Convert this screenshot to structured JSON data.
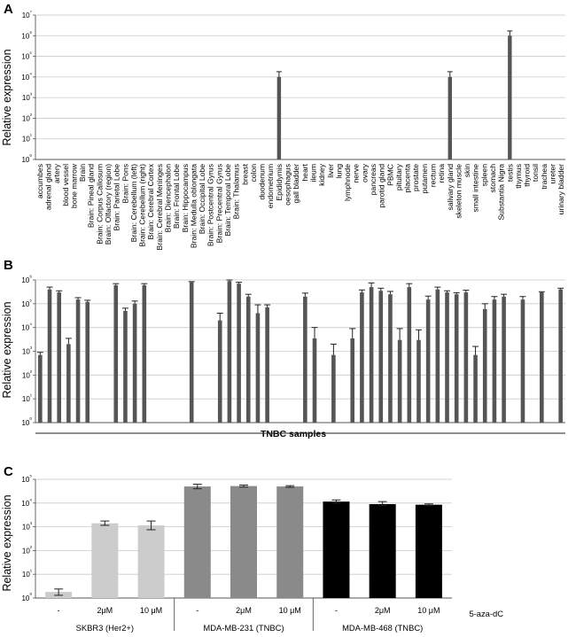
{
  "chart_data": [
    {
      "panel": "A",
      "type": "bar",
      "ylabel": "Relative expression",
      "yscale": "log",
      "ylim": [
        1,
        10000000
      ],
      "yticks": [
        "10⁰",
        "10¹",
        "10²",
        "10³",
        "10⁴",
        "10⁵",
        "10⁶",
        "10⁷"
      ],
      "grid": true,
      "color": "#555555",
      "categories": [
        "accumbes",
        "adrenal gland",
        "artery",
        "blood vessel",
        "bone marrow",
        "Brain",
        "Brain: Pineal gland",
        "Brain: Corpus Callosum",
        "Brain: Olfactory (region)",
        "Brain: Parietal Lobe",
        "Brain: Pons",
        "Brain: Cerebellum (left)",
        "Brain: Cerebellum (right)",
        "Brain: Cerebral Cortex",
        "Brain: Cerebral Meninges",
        "Brain: Diencephalon",
        "Brain: Frontal Lobe",
        "Brain: Hippocampus",
        "Brain: Medulla oblongata",
        "Brain: Occipital Lobe",
        "Brain: Postcentral Gyrus",
        "Brain: Precentral Gyrus",
        "Brain: Temporal Lobe",
        "Brain: Thalamus",
        "breast",
        "colon",
        "duodenum",
        "endometrium",
        "Epididymis",
        "oesophagus",
        "gall bladder",
        "heart",
        "ileum",
        "kidney",
        "liver",
        "lung",
        "lymphnode",
        "nerve",
        "ovary",
        "pancreas",
        "parotid gland",
        "PBMC",
        "pituitary",
        "placenta",
        "prostate",
        "putamen",
        "rectum",
        "retina",
        "salivary gland",
        "skeleton muscle",
        "skin",
        "small intestine",
        "spleen",
        "stomach",
        "Substantia Nigra",
        "testis",
        "thymus",
        "thyroid",
        "tonsil",
        "trachea",
        "ureter",
        "urinary bladder"
      ],
      "values": [
        1,
        1,
        1,
        1,
        1,
        1,
        1,
        1,
        1,
        1,
        1,
        1,
        1,
        1,
        1,
        1,
        1,
        1,
        1,
        1,
        1,
        1,
        1,
        1,
        1,
        1,
        1,
        1,
        10000,
        1,
        1,
        1,
        1,
        1,
        1,
        1,
        1,
        1,
        1,
        1,
        1,
        1,
        1,
        1,
        1,
        1,
        1,
        1,
        10000,
        1,
        1,
        1,
        1,
        1,
        1,
        1000000,
        1,
        1,
        1,
        1,
        1,
        1
      ],
      "errors_upper": [
        1,
        1,
        1,
        1,
        1,
        1,
        1,
        1,
        1,
        1,
        1,
        1,
        1,
        1,
        1,
        1,
        1,
        1,
        1,
        1,
        1,
        1,
        1,
        1,
        1,
        1,
        1,
        1,
        18000,
        1,
        1,
        1,
        1,
        1,
        1,
        1,
        1,
        1,
        1,
        1,
        1,
        1,
        1,
        1,
        1,
        1,
        1,
        1,
        18000,
        1,
        1,
        1,
        1,
        1,
        1,
        1700000,
        1,
        1,
        1,
        1,
        1,
        1
      ]
    },
    {
      "panel": "B",
      "type": "bar",
      "ylabel": "Relative expression",
      "xlabel": "TNBC samples",
      "yscale": "log",
      "ylim": [
        1,
        1000000
      ],
      "yticks": [
        "10⁰",
        "10¹",
        "10²",
        "10³",
        "10⁴",
        "10⁵",
        "10⁶"
      ],
      "grid": true,
      "color": "#555555",
      "values": [
        700,
        400000,
        300000,
        2000,
        150000,
        120000,
        1,
        1,
        600000,
        50000,
        100000,
        600000,
        1,
        1,
        1,
        1,
        800000,
        1,
        1,
        20000,
        900000,
        700000,
        200000,
        40000,
        70000,
        1,
        1,
        1,
        200000,
        3500,
        1,
        700,
        1,
        3500,
        300000,
        500000,
        350000,
        250000,
        3000,
        500000,
        3000,
        150000,
        400000,
        300000,
        250000,
        300000,
        700,
        60000,
        150000,
        200000,
        1,
        150000,
        1,
        300000,
        1,
        400000
      ],
      "errors_upper": [
        900,
        500000,
        350000,
        3500,
        180000,
        140000,
        1,
        1,
        700000,
        65000,
        130000,
        700000,
        1,
        1,
        1,
        1,
        850000,
        1,
        1,
        40000,
        1000000,
        800000,
        250000,
        90000,
        90000,
        1,
        1,
        1,
        280000,
        10000,
        1,
        2000,
        1,
        9000,
        380000,
        750000,
        450000,
        330000,
        9000,
        700000,
        8000,
        210000,
        500000,
        350000,
        290000,
        370000,
        1600,
        100000,
        200000,
        250000,
        1,
        200000,
        1,
        320000,
        1,
        450000
      ]
    },
    {
      "panel": "C",
      "type": "bar",
      "ylabel": "Relative expression",
      "yscale": "log",
      "ylim": [
        1,
        100000
      ],
      "yticks": [
        "10⁰",
        "10¹",
        "10²",
        "10³",
        "10⁴",
        "10⁵"
      ],
      "grid": true,
      "treatment_label": "5-aza-dC",
      "groups": [
        {
          "name": "SKBR3   (Her2+)",
          "color": "#cccccc",
          "categories": [
            "-",
            "2μM",
            "10 μM"
          ],
          "values": [
            1.8,
            1400,
            1150
          ],
          "errors": [
            [
              1.3,
              2.4
            ],
            [
              1150,
              1750
            ],
            [
              750,
              1750
            ]
          ]
        },
        {
          "name": "MDA-MB-231  (TNBC)",
          "color": "#8a8a8a",
          "categories": [
            "-",
            "2μM",
            "10 μM"
          ],
          "values": [
            50000,
            52000,
            50000
          ],
          "errors": [
            [
              40000,
              62000
            ],
            [
              47000,
              57000
            ],
            [
              46000,
              54000
            ]
          ]
        },
        {
          "name": "MDA-MB-468  (TNBC)",
          "color": "#000000",
          "categories": [
            "-",
            "2μM",
            "10 μM"
          ],
          "values": [
            11500,
            9000,
            8500
          ],
          "errors": [
            [
              10000,
              13500
            ],
            [
              7800,
              11500
            ],
            [
              7800,
              9200
            ]
          ]
        }
      ]
    }
  ]
}
